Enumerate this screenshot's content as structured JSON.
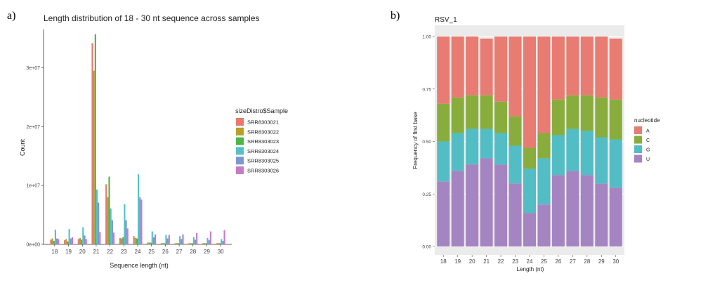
{
  "panels": {
    "a": "a)",
    "b": "b)"
  },
  "chart_data": [
    {
      "type": "bar",
      "title": "Length distribution of 18 - 30 nt sequence across samples",
      "xlabel": "Sequence length (nt)",
      "ylabel": "Count",
      "categories": [
        "18",
        "19",
        "20",
        "21",
        "22",
        "23",
        "24",
        "25",
        "26",
        "27",
        "28",
        "29",
        "30"
      ],
      "yticks": [
        {
          "value": 0,
          "label": "0e+00"
        },
        {
          "value": 10000000,
          "label": "1e+07"
        },
        {
          "value": 20000000,
          "label": "2e+07"
        },
        {
          "value": 30000000,
          "label": "3e+07"
        }
      ],
      "ylim": [
        0,
        36500000
      ],
      "legend_title": "sizeDistro$Sample",
      "series": [
        {
          "name": "SRR8303021",
          "color": "#E8796E",
          "values": [
            800000,
            700000,
            900000,
            34200000,
            10200000,
            1100000,
            1400000,
            300000,
            200000,
            200000,
            200000,
            200000,
            200000
          ]
        },
        {
          "name": "SRR8303022",
          "color": "#B79F2A",
          "values": [
            1000000,
            900000,
            1100000,
            29500000,
            8000000,
            1000000,
            1100000,
            300000,
            200000,
            200000,
            200000,
            200000,
            200000
          ]
        },
        {
          "name": "SRR8303023",
          "color": "#4EB649",
          "values": [
            600000,
            500000,
            800000,
            35700000,
            11500000,
            1200000,
            1000000,
            300000,
            200000,
            200000,
            200000,
            200000,
            200000
          ]
        },
        {
          "name": "SRR8303024",
          "color": "#55C0C6",
          "values": [
            2500000,
            2600000,
            2900000,
            9300000,
            6100000,
            6800000,
            11900000,
            2200000,
            1600000,
            1400000,
            1200000,
            1100000,
            900000
          ]
        },
        {
          "name": "SRR8303025",
          "color": "#7B97D3",
          "values": [
            1000000,
            1000000,
            1500000,
            7100000,
            4100000,
            4100000,
            8000000,
            1200000,
            1000000,
            900000,
            800000,
            700000,
            600000
          ]
        },
        {
          "name": "SRR8303026",
          "color": "#C77BC6",
          "values": [
            900000,
            1200000,
            900000,
            2100000,
            2000000,
            2700000,
            7600000,
            1700000,
            1600000,
            1700000,
            1900000,
            2200000,
            2400000
          ]
        }
      ]
    },
    {
      "type": "bar",
      "stacked": true,
      "title": "RSV_1",
      "xlabel": "Length (nt)",
      "ylabel": "Frequency of first base",
      "categories": [
        "18",
        "19",
        "20",
        "21",
        "22",
        "23",
        "24",
        "25",
        "26",
        "27",
        "28",
        "29",
        "30"
      ],
      "yticks": [
        {
          "value": 0,
          "label": "0.00"
        },
        {
          "value": 0.25,
          "label": "0.25"
        },
        {
          "value": 0.5,
          "label": "0.50"
        },
        {
          "value": 0.75,
          "label": "0.75"
        },
        {
          "value": 1,
          "label": "1.00"
        }
      ],
      "ylim": [
        0,
        1
      ],
      "legend_title": "nucleotide",
      "stack_order": [
        "U",
        "G",
        "C",
        "A"
      ],
      "series": [
        {
          "name": "A",
          "color": "#E87B72",
          "values": [
            0.32,
            0.29,
            0.28,
            0.27,
            0.31,
            0.38,
            0.53,
            0.46,
            0.3,
            0.28,
            0.28,
            0.29,
            0.29
          ]
        },
        {
          "name": "C",
          "color": "#89AD3C",
          "values": [
            0.18,
            0.17,
            0.16,
            0.16,
            0.15,
            0.14,
            0.1,
            0.12,
            0.17,
            0.16,
            0.17,
            0.19,
            0.19
          ]
        },
        {
          "name": "G",
          "color": "#52BDC4",
          "values": [
            0.19,
            0.18,
            0.17,
            0.14,
            0.15,
            0.18,
            0.21,
            0.22,
            0.19,
            0.2,
            0.21,
            0.22,
            0.23
          ]
        },
        {
          "name": "U",
          "color": "#A584C2",
          "values": [
            0.31,
            0.36,
            0.39,
            0.42,
            0.39,
            0.3,
            0.16,
            0.2,
            0.34,
            0.36,
            0.34,
            0.3,
            0.28
          ]
        }
      ]
    }
  ]
}
